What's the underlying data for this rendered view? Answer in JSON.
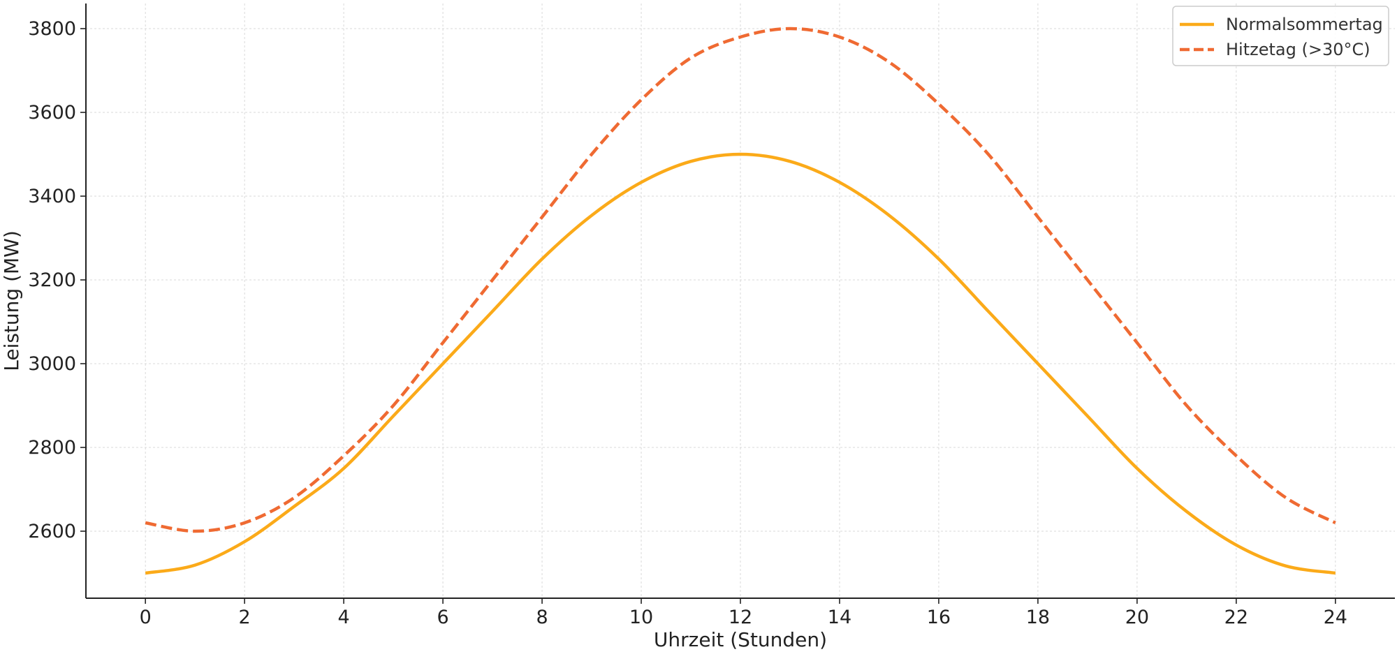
{
  "chart_data": {
    "type": "line",
    "title": "",
    "xlabel": "Uhrzeit (Stunden)",
    "ylabel": "Leistung (MW)",
    "xlim": [
      -1.2,
      25.2
    ],
    "ylim": [
      2440,
      3860
    ],
    "xticks": [
      0,
      2,
      4,
      6,
      8,
      10,
      12,
      14,
      16,
      18,
      20,
      22,
      24
    ],
    "yticks": [
      2600,
      2800,
      3000,
      3200,
      3400,
      3600,
      3800
    ],
    "x": [
      0,
      1,
      2,
      3,
      4,
      5,
      6,
      7,
      8,
      9,
      10,
      11,
      12,
      13,
      14,
      15,
      16,
      17,
      18,
      19,
      20,
      21,
      22,
      23,
      24
    ],
    "grid": true,
    "legend_position": "top-right",
    "series": [
      {
        "name": "Normalsommertag",
        "color": "#FBAA19",
        "style": "solid",
        "values": [
          2500,
          2519,
          2575,
          2659,
          2750,
          2875,
          3000,
          3125,
          3250,
          3354,
          3433,
          3483,
          3500,
          3483,
          3433,
          3354,
          3250,
          3125,
          3000,
          2875,
          2750,
          2647,
          2567,
          2517,
          2500
        ]
      },
      {
        "name": "Hitzetag (>30°C)",
        "color": "#EF6A32",
        "style": "dashed",
        "values": [
          2620,
          2600,
          2620,
          2680,
          2780,
          2900,
          3050,
          3200,
          3350,
          3500,
          3630,
          3730,
          3780,
          3800,
          3780,
          3720,
          3620,
          3500,
          3350,
          3200,
          3050,
          2900,
          2780,
          2680,
          2620
        ]
      }
    ]
  }
}
